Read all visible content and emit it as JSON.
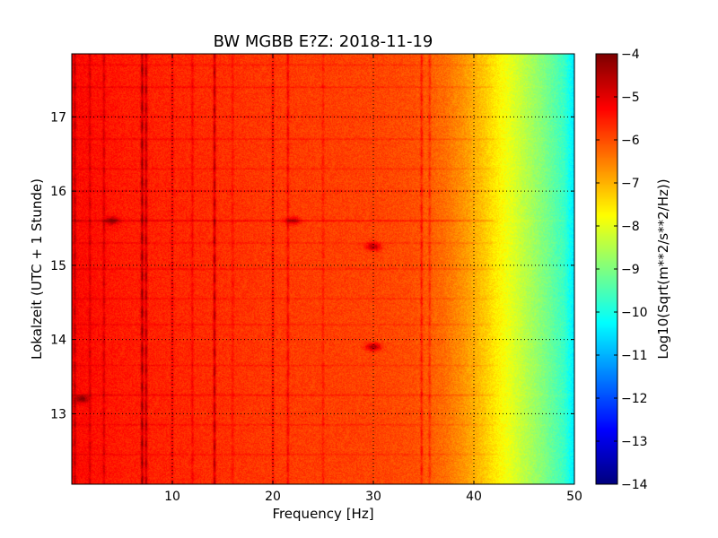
{
  "chart_data": {
    "type": "heatmap",
    "title": "BW MGBB E?Z: 2018-11-19",
    "xlabel": "Frequency [Hz]",
    "ylabel": "Lokalzeit (UTC + 1 Stunde)",
    "xlim": [
      0,
      50
    ],
    "ylim": [
      17.85,
      12.05
    ],
    "x_ticks": [
      10,
      20,
      30,
      40,
      50
    ],
    "y_ticks": [
      13,
      14,
      15,
      16,
      17
    ],
    "grid": true,
    "colormap": "jet",
    "colorbar": {
      "label": "Log10(Sqrt(m**2/s**2/Hz))",
      "range": [
        -14,
        -4
      ],
      "ticks": [
        -4,
        -5,
        -6,
        -7,
        -8,
        -9,
        -10,
        -11,
        -12,
        -13,
        -14
      ]
    },
    "baseline_profile": {
      "frequency_hz": [
        0,
        5,
        10,
        20,
        30,
        34,
        37,
        39,
        41,
        43,
        45,
        47,
        49,
        50
      ],
      "value": [
        -5.3,
        -5.5,
        -5.6,
        -5.8,
        -5.9,
        -6.0,
        -6.3,
        -6.7,
        -7.2,
        -7.8,
        -8.4,
        -9.0,
        -9.7,
        -10.5
      ]
    },
    "vertical_lines_hz": [
      {
        "f": 0.3,
        "strength": 0.9
      },
      {
        "f": 1.8,
        "strength": 0.6
      },
      {
        "f": 3.2,
        "strength": 0.7
      },
      {
        "f": 7.0,
        "strength": 1.6
      },
      {
        "f": 7.4,
        "strength": 1.3
      },
      {
        "f": 10.0,
        "strength": 0.5
      },
      {
        "f": 12.0,
        "strength": 0.5
      },
      {
        "f": 14.2,
        "strength": 1.4
      },
      {
        "f": 16.0,
        "strength": 0.4
      },
      {
        "f": 20.0,
        "strength": 0.6
      },
      {
        "f": 21.5,
        "strength": 0.7
      },
      {
        "f": 25.0,
        "strength": 0.4
      },
      {
        "f": 34.8,
        "strength": 0.8
      },
      {
        "f": 35.6,
        "strength": 0.6
      }
    ],
    "horizontal_lines_h": [
      {
        "t": 12.45,
        "strength": 0.4
      },
      {
        "t": 12.85,
        "strength": 0.4
      },
      {
        "t": 13.25,
        "strength": 0.6
      },
      {
        "t": 13.65,
        "strength": 0.4
      },
      {
        "t": 14.2,
        "strength": 0.4
      },
      {
        "t": 14.55,
        "strength": 0.4
      },
      {
        "t": 14.95,
        "strength": 0.5
      },
      {
        "t": 15.3,
        "strength": 0.4
      },
      {
        "t": 15.6,
        "strength": 0.9
      },
      {
        "t": 16.0,
        "strength": 0.5
      },
      {
        "t": 16.3,
        "strength": 0.4
      },
      {
        "t": 16.7,
        "strength": 0.5
      },
      {
        "t": 17.0,
        "strength": 0.4
      },
      {
        "t": 17.4,
        "strength": 0.5
      },
      {
        "t": 17.7,
        "strength": 0.4
      }
    ],
    "hotspots": [
      {
        "f": 1.0,
        "t": 13.2,
        "strength": 1.3
      },
      {
        "f": 30.0,
        "t": 13.9,
        "strength": 1.5
      },
      {
        "f": 30.0,
        "t": 15.25,
        "strength": 1.4
      },
      {
        "f": 4.0,
        "t": 15.6,
        "strength": 1.2
      },
      {
        "f": 22.0,
        "t": 15.6,
        "strength": 1.1
      }
    ]
  }
}
